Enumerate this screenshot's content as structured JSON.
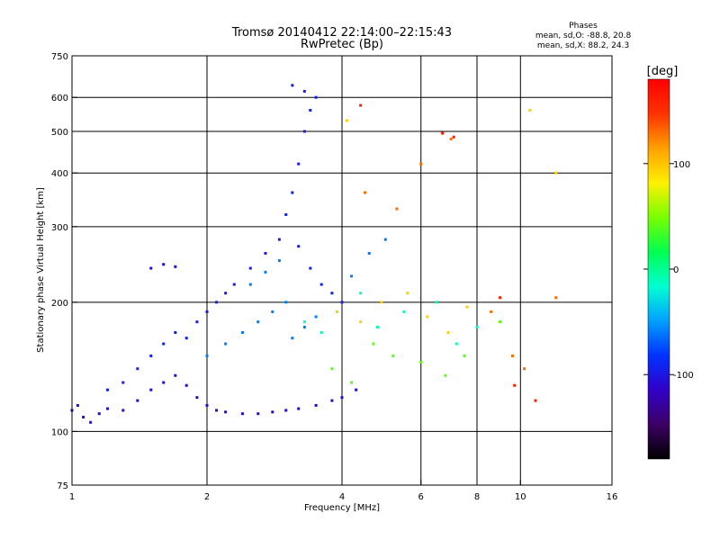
{
  "chart_data": {
    "type": "scatter",
    "title": "Tromsø 20140412 22:14:00–22:15:43",
    "subtitle": "RwPretec (Bp)",
    "annotation": {
      "heading": "Phases",
      "line1": "mean, sd,O: -88.8, 20.8",
      "line2": "mean, sd,X:  88.2, 24.3"
    },
    "xlabel": "Frequency [MHz]",
    "ylabel": "Stationary phase Virtual Height [km]",
    "x_scale": "log",
    "y_scale": "log",
    "xlim": [
      1,
      16
    ],
    "ylim": [
      75,
      750
    ],
    "grid": true,
    "x_ticks": [
      1,
      2,
      4,
      6,
      8,
      10,
      16
    ],
    "x_tick_labels": [
      "1",
      "2",
      "4",
      "6",
      "8",
      "10",
      "16"
    ],
    "x_gridlines": [
      2,
      4,
      6,
      8,
      10
    ],
    "y_ticks": [
      75,
      100,
      200,
      300,
      400,
      500,
      600,
      750
    ],
    "y_tick_labels": [
      "75",
      "100",
      "200",
      "300",
      "400",
      "500",
      "600",
      "750"
    ],
    "y_gridlines": [
      100,
      200,
      300,
      400,
      500,
      600
    ],
    "colorbar": {
      "label": "[deg]",
      "range": [
        -180,
        180
      ],
      "ticks": [
        -100,
        0,
        100
      ],
      "tick_labels": [
        "-100",
        "0",
        "100"
      ],
      "colors": [
        "#000000",
        "#3c0064",
        "#3200c8",
        "#0032ff",
        "#00a0ff",
        "#00ffd2",
        "#00ff50",
        "#78ff00",
        "#fff000",
        "#ffa000",
        "#ff3200",
        "#ff0000"
      ]
    },
    "series": [
      {
        "phase": -110,
        "points": [
          [
            1.0,
            112
          ],
          [
            1.03,
            115
          ],
          [
            1.06,
            108
          ],
          [
            1.1,
            105
          ],
          [
            1.15,
            110
          ],
          [
            1.2,
            113
          ],
          [
            1.3,
            112
          ],
          [
            1.4,
            118
          ],
          [
            1.5,
            125
          ],
          [
            1.6,
            130
          ],
          [
            1.7,
            135
          ],
          [
            1.8,
            128
          ],
          [
            1.9,
            120
          ],
          [
            2.0,
            115
          ],
          [
            2.1,
            112
          ],
          [
            2.2,
            111
          ],
          [
            2.4,
            110
          ],
          [
            2.6,
            110
          ],
          [
            2.8,
            111
          ],
          [
            3.0,
            112
          ],
          [
            3.2,
            113
          ],
          [
            3.5,
            115
          ],
          [
            3.8,
            118
          ],
          [
            4.0,
            120
          ],
          [
            4.3,
            125
          ],
          [
            1.5,
            240
          ],
          [
            1.6,
            245
          ],
          [
            1.7,
            242
          ]
        ]
      },
      {
        "phase": -95,
        "points": [
          [
            1.2,
            125
          ],
          [
            1.3,
            130
          ],
          [
            1.4,
            140
          ],
          [
            1.5,
            150
          ],
          [
            1.6,
            160
          ],
          [
            1.7,
            170
          ],
          [
            1.8,
            165
          ],
          [
            1.9,
            180
          ],
          [
            2.0,
            190
          ],
          [
            2.1,
            200
          ],
          [
            2.2,
            210
          ],
          [
            2.3,
            220
          ],
          [
            2.5,
            240
          ],
          [
            2.7,
            260
          ],
          [
            2.9,
            280
          ],
          [
            3.0,
            320
          ],
          [
            3.1,
            360
          ],
          [
            3.2,
            420
          ],
          [
            3.3,
            500
          ],
          [
            3.4,
            560
          ],
          [
            3.5,
            600
          ],
          [
            3.3,
            620
          ],
          [
            3.1,
            640
          ],
          [
            3.2,
            270
          ],
          [
            3.4,
            240
          ],
          [
            3.6,
            220
          ],
          [
            3.8,
            210
          ],
          [
            4.0,
            200
          ]
        ]
      },
      {
        "phase": -60,
        "points": [
          [
            2.0,
            150
          ],
          [
            2.2,
            160
          ],
          [
            2.4,
            170
          ],
          [
            2.6,
            180
          ],
          [
            2.8,
            190
          ],
          [
            3.0,
            200
          ],
          [
            2.5,
            220
          ],
          [
            2.7,
            235
          ],
          [
            2.9,
            250
          ],
          [
            3.1,
            165
          ],
          [
            3.3,
            175
          ],
          [
            3.5,
            185
          ],
          [
            4.2,
            230
          ],
          [
            4.6,
            260
          ],
          [
            5.0,
            280
          ]
        ]
      },
      {
        "phase": -10,
        "points": [
          [
            3.3,
            180
          ],
          [
            3.6,
            170
          ],
          [
            4.4,
            210
          ],
          [
            4.8,
            175
          ],
          [
            5.5,
            190
          ],
          [
            6.5,
            200
          ],
          [
            7.2,
            160
          ],
          [
            8.0,
            175
          ]
        ]
      },
      {
        "phase": 40,
        "points": [
          [
            3.8,
            140
          ],
          [
            4.2,
            130
          ],
          [
            4.7,
            160
          ],
          [
            5.2,
            150
          ],
          [
            6.0,
            145
          ],
          [
            6.8,
            135
          ],
          [
            7.5,
            150
          ],
          [
            9.0,
            180
          ]
        ]
      },
      {
        "phase": 95,
        "points": [
          [
            3.9,
            190
          ],
          [
            4.4,
            180
          ],
          [
            4.9,
            200
          ],
          [
            5.6,
            210
          ],
          [
            6.2,
            185
          ],
          [
            6.9,
            170
          ],
          [
            7.6,
            195
          ],
          [
            10.5,
            560
          ],
          [
            12.0,
            400
          ],
          [
            4.1,
            530
          ]
        ]
      },
      {
        "phase": 130,
        "points": [
          [
            4.5,
            360
          ],
          [
            5.3,
            330
          ],
          [
            6.0,
            420
          ],
          [
            7.0,
            480
          ],
          [
            8.6,
            190
          ],
          [
            9.6,
            150
          ],
          [
            10.2,
            140
          ],
          [
            12.0,
            205
          ]
        ]
      },
      {
        "phase": 160,
        "points": [
          [
            4.4,
            575
          ],
          [
            6.7,
            495
          ],
          [
            7.1,
            485
          ],
          [
            9.0,
            205
          ],
          [
            9.7,
            128
          ],
          [
            10.8,
            118
          ]
        ]
      }
    ]
  }
}
